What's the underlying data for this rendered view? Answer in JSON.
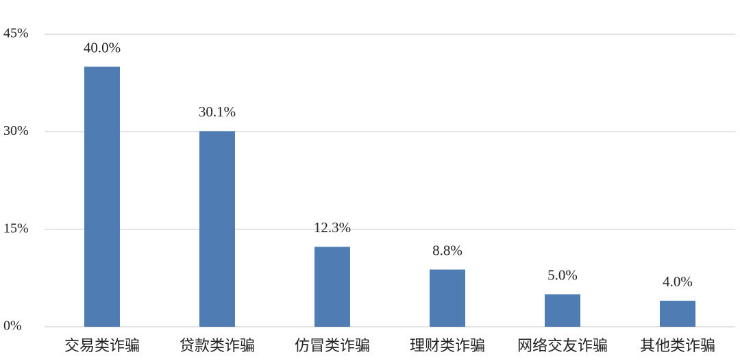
{
  "chart_data": {
    "type": "bar",
    "categories": [
      "交易类诈骗",
      "贷款类诈骗",
      "仿冒类诈骗",
      "理财类诈骗",
      "网络交友诈骗",
      "其他类诈骗"
    ],
    "values": [
      40.0,
      30.1,
      12.3,
      8.8,
      5.0,
      4.0
    ],
    "value_labels": [
      "40.0%",
      "30.1%",
      "12.3%",
      "8.8%",
      "5.0%",
      "4.0%"
    ],
    "color": "#4f7db3",
    "ylim": [
      0,
      45
    ],
    "yticks": [
      {
        "value": 0,
        "label": "0%"
      },
      {
        "value": 15,
        "label": "15%"
      },
      {
        "value": 30,
        "label": "30%"
      },
      {
        "value": 45,
        "label": "45%"
      }
    ],
    "grid": true
  }
}
